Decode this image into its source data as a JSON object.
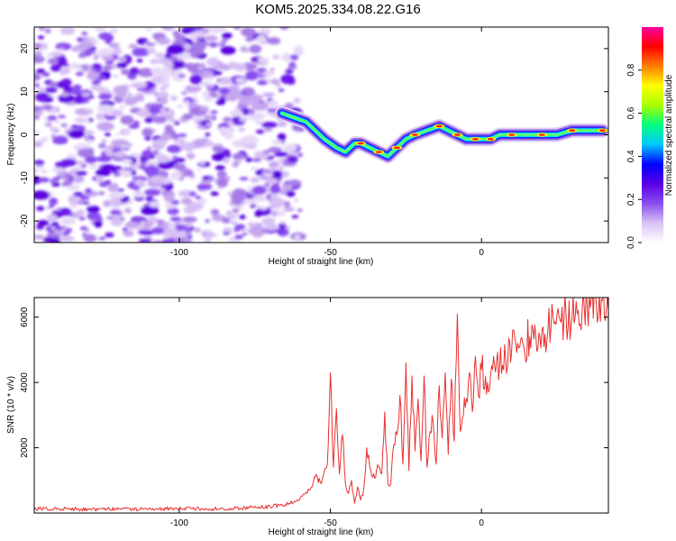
{
  "title": "KOM5.2025.334.08.22.G16",
  "chart_data": [
    {
      "type": "heatmap",
      "name": "spectrogram",
      "title": "KOM5.2025.334.08.22.G16",
      "xlabel": "Height of straight line (km)",
      "ylabel": "Frequency (Hz)",
      "xlim": [
        -148,
        42
      ],
      "ylim": [
        -25,
        25
      ],
      "xticks": [
        -100,
        -50,
        0
      ],
      "yticks": [
        -20,
        -10,
        0,
        10,
        20
      ],
      "ridge": {
        "x": [
          -66,
          -62,
          -58,
          -55,
          -52,
          -48,
          -45,
          -42,
          -40,
          -37,
          -34,
          -31,
          -28,
          -25,
          -22,
          -18,
          -14,
          -11,
          -8,
          -5,
          -2,
          0,
          3,
          6,
          10,
          15,
          20,
          25,
          30,
          35,
          40
        ],
        "y": [
          5,
          4,
          3,
          1,
          -1,
          -3,
          -4,
          -2,
          -2,
          -3,
          -4,
          -5,
          -3,
          -1,
          0,
          1,
          2,
          1,
          0,
          -1,
          -1,
          -1,
          -1,
          0,
          0,
          0,
          0,
          0,
          1,
          1,
          1
        ]
      },
      "noise_region_x": [
        -148,
        -63
      ],
      "colorbar": {
        "label": "Normalized spectral amplitude",
        "range": [
          0,
          1
        ],
        "ticks": [
          0.0,
          0.2,
          0.4,
          0.6,
          0.8
        ],
        "tick_labels": [
          "0.0",
          "0.2",
          "0.4",
          "0.6",
          "0.8"
        ],
        "colormap": [
          "#ffffff",
          "#d8c2f4",
          "#8a4df0",
          "#5a00e6",
          "#0000ff",
          "#00c8ff",
          "#00ff80",
          "#a8ff00",
          "#ffff00",
          "#ff7f00",
          "#ff0000",
          "#ff00a0"
        ]
      }
    },
    {
      "type": "line",
      "name": "snr",
      "xlabel": "Height of straight line (km)",
      "ylabel": "SNR (10 * v/v)",
      "xlim": [
        -148,
        42
      ],
      "ylim": [
        0,
        6600
      ],
      "xticks": [
        -100,
        -50,
        0
      ],
      "yticks": [
        2000,
        4000,
        6000
      ],
      "color": "#e83030",
      "series": [
        {
          "name": "SNR",
          "x": [
            -148,
            -140,
            -130,
            -120,
            -110,
            -100,
            -90,
            -80,
            -70,
            -65,
            -60,
            -57,
            -55,
            -53,
            -51,
            -50,
            -49,
            -48,
            -47,
            -46,
            -45,
            -44,
            -43,
            -42,
            -41,
            -40,
            -39,
            -38,
            -36,
            -34,
            -33,
            -32,
            -31,
            -30,
            -29,
            -28,
            -27,
            -26,
            -25,
            -24,
            -23,
            -22,
            -21,
            -20,
            -19,
            -18,
            -17,
            -16,
            -15,
            -14,
            -13,
            -12,
            -11,
            -10,
            -9,
            -8,
            -7,
            -6,
            -5,
            -4,
            -3,
            -2,
            -1,
            0,
            2,
            4,
            6,
            8,
            10,
            12,
            14,
            16,
            18,
            20,
            22,
            24,
            26,
            28,
            30,
            32,
            34,
            36,
            38,
            40,
            42
          ],
          "y": [
            120,
            140,
            110,
            130,
            120,
            140,
            130,
            150,
            200,
            250,
            450,
            700,
            1100,
            900,
            1500,
            4300,
            1400,
            3200,
            1200,
            2400,
            900,
            600,
            1000,
            300,
            800,
            400,
            700,
            2000,
            1100,
            1400,
            1200,
            3100,
            900,
            900,
            2100,
            2400,
            3600,
            1500,
            4600,
            1300,
            4200,
            1900,
            3500,
            1600,
            4200,
            1400,
            2500,
            2800,
            1500,
            3900,
            2300,
            4300,
            1800,
            4100,
            2200,
            6100,
            2500,
            3000,
            3500,
            4300,
            3100,
            4800,
            3600,
            4400,
            4000,
            4800,
            4500,
            4700,
            5000,
            5200,
            5100,
            5400,
            5400,
            5600,
            5600,
            5800,
            5900,
            6000,
            6000,
            6200,
            6300,
            6300,
            6400,
            6500,
            6200
          ]
        }
      ]
    }
  ]
}
